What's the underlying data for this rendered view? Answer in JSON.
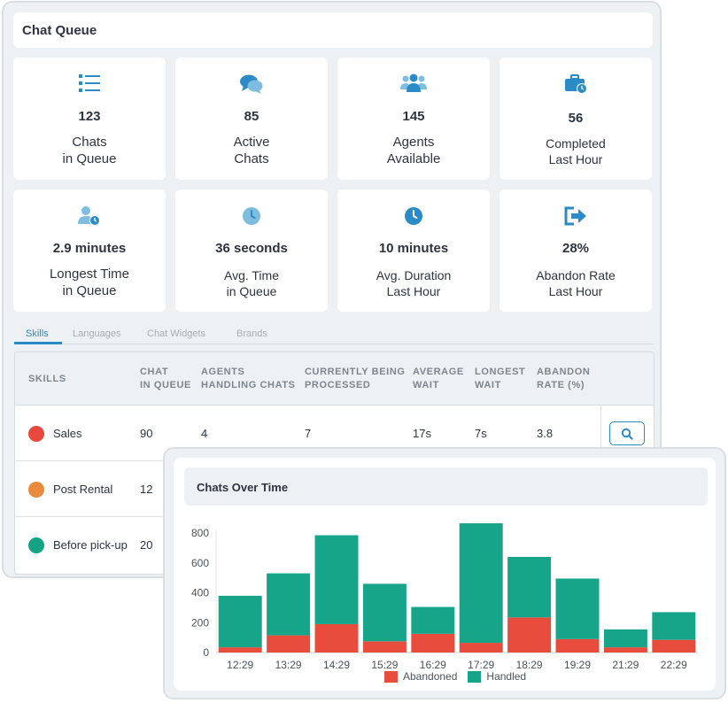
{
  "header": {
    "title": "Chat Queue"
  },
  "stats": [
    {
      "icon": "list-icon",
      "value": "123",
      "label_line1": "Chats",
      "label_line2": "in Queue"
    },
    {
      "icon": "chat-bubbles-icon",
      "value": "85",
      "label_line1": "Active",
      "label_line2": "Chats"
    },
    {
      "icon": "agents-group-icon",
      "value": "145",
      "label_line1": "Agents",
      "label_line2": "Available"
    },
    {
      "icon": "briefcase-clock-icon",
      "value": "56",
      "label_line1": "Completed",
      "label_line2": "Last Hour"
    },
    {
      "icon": "user-clock-icon",
      "value": "2.9 minutes",
      "label_line1": "Longest Time",
      "label_line2": "in Queue"
    },
    {
      "icon": "clock-light-icon",
      "value": "36 seconds",
      "label_line1": "Avg. Time",
      "label_line2": "in Queue"
    },
    {
      "icon": "clock-icon",
      "value": "10 minutes",
      "label_line1": "Avg. Duration",
      "label_line2": "Last Hour"
    },
    {
      "icon": "exit-arrow-icon",
      "value": "28%",
      "label_line1": "Abandon Rate",
      "label_line2": "Last Hour"
    }
  ],
  "tabs": [
    "Skills",
    "Languages",
    "Chat Widgets",
    "Brands"
  ],
  "table": {
    "headers": [
      {
        "line1": "Skills",
        "line2": ""
      },
      {
        "line1": "Chat",
        "line2": "in Queue"
      },
      {
        "line1": "Agents",
        "line2": "Handling Chats"
      },
      {
        "line1": "Currently Being",
        "line2": "Processed"
      },
      {
        "line1": "Average",
        "line2": "Wait"
      },
      {
        "line1": "Longest",
        "line2": "Wait"
      },
      {
        "line1": "Abandon",
        "line2": "Rate (%)"
      }
    ],
    "rows": [
      {
        "color": "#e8493d",
        "skill": "Sales",
        "chat_in_queue": "90",
        "agents_handling": "4",
        "currently_processed": "7",
        "average_wait": "17s",
        "longest_wait": "7s",
        "abandon_rate": "3.8"
      },
      {
        "color": "#ea8a3c",
        "skill": "Post Rental",
        "chat_in_queue": "12"
      },
      {
        "color": "#15a386",
        "skill": "Before pick-up",
        "chat_in_queue": "20"
      }
    ]
  },
  "colors": {
    "accent": "#2b8bc6",
    "abandoned": "#e84c3d",
    "handled": "#17a589"
  },
  "chart_panel": {
    "title": "Chats Over Time"
  },
  "chart_data": {
    "type": "bar",
    "stacked": true,
    "title": "Chats Over Time",
    "categories": [
      "12:29",
      "13:29",
      "14:29",
      "15:29",
      "16:29",
      "17:29",
      "18:29",
      "19:29",
      "21:29",
      "22:29"
    ],
    "series": [
      {
        "name": "Abandoned",
        "color": "#e84c3d",
        "values": [
          35,
          115,
          190,
          75,
          125,
          65,
          235,
          90,
          35,
          85
        ]
      },
      {
        "name": "Handled",
        "color": "#17a589",
        "values": [
          345,
          415,
          595,
          385,
          180,
          800,
          405,
          405,
          120,
          185
        ]
      }
    ],
    "yticks": [
      800,
      600,
      400,
      200,
      0
    ],
    "ylim": [
      0,
      800
    ],
    "legend_position": "bottom"
  }
}
